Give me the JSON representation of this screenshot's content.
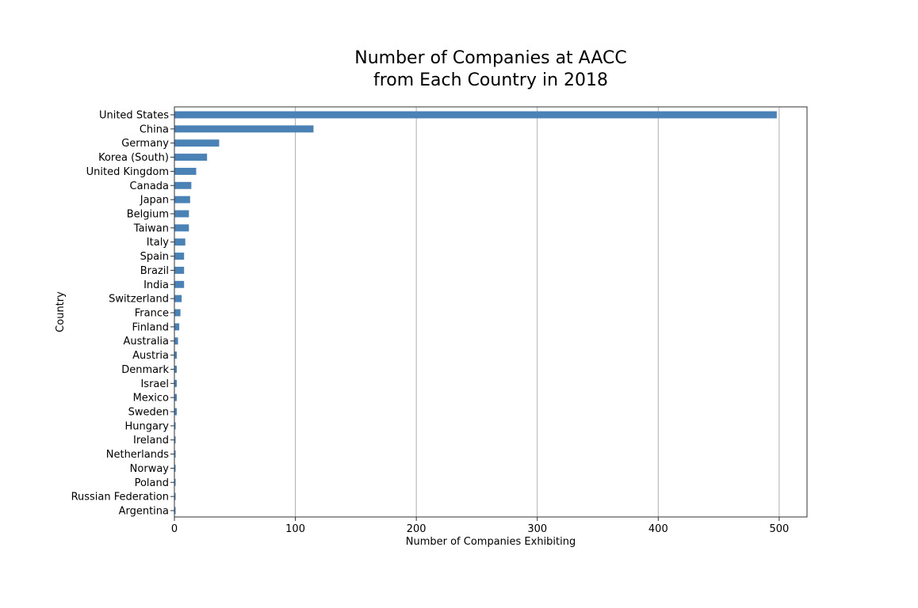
{
  "chart_data": {
    "type": "bar",
    "orientation": "horizontal",
    "title": "Number of Companies at AACC\nfrom Each Country in 2018",
    "xlabel": "Number of Companies Exhibiting",
    "ylabel": "Country",
    "xlim": [
      0,
      523
    ],
    "xticks": [
      0,
      100,
      200,
      300,
      400,
      500
    ],
    "grid": "x",
    "bar_color": "#4a82b5",
    "categories": [
      "United States",
      "China",
      "Germany",
      "Korea (South)",
      "United Kingdom",
      "Canada",
      "Japan",
      "Belgium",
      "Taiwan",
      "Italy",
      "Spain",
      "Brazil",
      "India",
      "Switzerland",
      "France",
      "Finland",
      "Australia",
      "Austria",
      "Denmark",
      "Israel",
      "Mexico",
      "Sweden",
      "Hungary",
      "Ireland",
      "Netherlands",
      "Norway",
      "Poland",
      "Russian Federation",
      "Argentina"
    ],
    "values": [
      498,
      115,
      37,
      27,
      18,
      14,
      13,
      12,
      12,
      9,
      8,
      8,
      8,
      6,
      5,
      4,
      3,
      2,
      2,
      2,
      2,
      2,
      1,
      1,
      1,
      1,
      1,
      1,
      1
    ]
  }
}
